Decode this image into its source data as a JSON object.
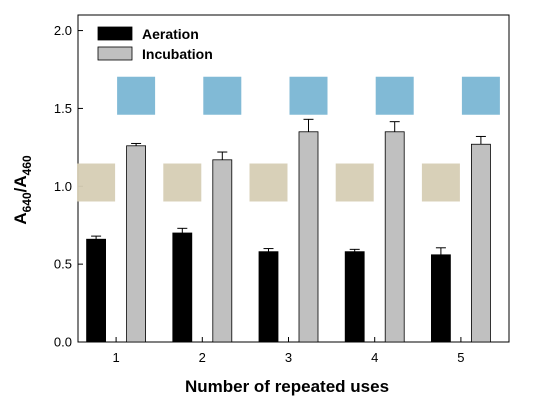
{
  "chart_data": {
    "type": "bar",
    "categories": [
      "1",
      "2",
      "3",
      "4",
      "5"
    ],
    "series": [
      {
        "name": "Aeration",
        "color": "#000000",
        "values": [
          0.66,
          0.7,
          0.58,
          0.58,
          0.56
        ],
        "errors": [
          0.02,
          0.03,
          0.02,
          0.015,
          0.045
        ],
        "swatch_color": "#d6cdb4"
      },
      {
        "name": "Incubation",
        "color": "#c0c0c0",
        "values": [
          1.26,
          1.17,
          1.35,
          1.35,
          1.27
        ],
        "errors": [
          0.015,
          0.05,
          0.08,
          0.065,
          0.05
        ],
        "swatch_color": "#7ab6d4"
      }
    ],
    "xlabel": "Number of repeated uses",
    "ylabel": {
      "main": "A",
      "sub1": "640",
      "slash": "/A",
      "sub2": "460"
    },
    "ylim": [
      0.0,
      2.1
    ],
    "yticks": [
      "0.0",
      "0.5",
      "1.0",
      "1.5",
      "2.0"
    ],
    "ytick_values": [
      0.0,
      0.5,
      1.0,
      1.5,
      2.0
    ],
    "grid": false,
    "legend": "top-left"
  }
}
